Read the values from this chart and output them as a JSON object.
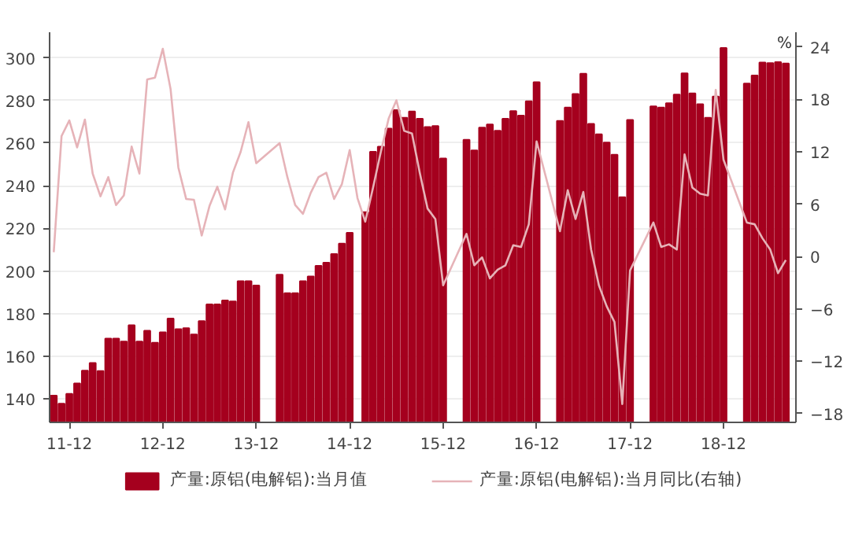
{
  "chart_data": {
    "type": "bar",
    "x": [
      "2011-10",
      "2011-11",
      "2011-12",
      "2012-01",
      "2012-02",
      "2012-03",
      "2012-04",
      "2012-05",
      "2012-06",
      "2012-07",
      "2012-08",
      "2012-09",
      "2012-10",
      "2012-11",
      "2012-12",
      "2013-01",
      "2013-02",
      "2013-03",
      "2013-04",
      "2013-05",
      "2013-06",
      "2013-07",
      "2013-08",
      "2013-09",
      "2013-10",
      "2013-11",
      "2013-12",
      "2014-01",
      "2014-02",
      "2014-03",
      "2014-04",
      "2014-05",
      "2014-06",
      "2014-07",
      "2014-08",
      "2014-09",
      "2014-10",
      "2014-11",
      "2014-12",
      "2015-01",
      "2015-02",
      "2015-03",
      "2015-04",
      "2015-05",
      "2015-06",
      "2015-07",
      "2015-08",
      "2015-09",
      "2015-10",
      "2015-11",
      "2015-12",
      "2016-01",
      "2016-02",
      "2016-03",
      "2016-04",
      "2016-05",
      "2016-06",
      "2016-07",
      "2016-08",
      "2016-09",
      "2016-10",
      "2016-11",
      "2016-12",
      "2017-01",
      "2017-02",
      "2017-03",
      "2017-04",
      "2017-05",
      "2017-06",
      "2017-07",
      "2017-08",
      "2017-09",
      "2017-10",
      "2017-11",
      "2017-12",
      "2018-01",
      "2018-02",
      "2018-03",
      "2018-04",
      "2018-05",
      "2018-06",
      "2018-07",
      "2018-08",
      "2018-09",
      "2018-10",
      "2018-11",
      "2018-12",
      "2019-01",
      "2019-02",
      "2019-03",
      "2019-04",
      "2019-05",
      "2019-06",
      "2019-07",
      "2019-08"
    ],
    "series": [
      {
        "name": "产量:原铝(电解铝):当月值",
        "color": "#a5001e",
        "values": [
          141.5,
          137.8,
          142.4,
          147.3,
          153.3,
          156.9,
          153.1,
          168.3,
          168.3,
          166.9,
          174.6,
          166.9,
          172,
          166.4,
          171.2,
          177.7,
          172.7,
          173.2,
          170.2,
          176.5,
          184.3,
          184.3,
          186.2,
          185.7,
          195.2,
          195.2,
          193.2,
          null,
          null,
          198.3,
          189.6,
          189.6,
          195.2,
          197.4,
          202.4,
          203.9,
          208,
          212.8,
          217.9,
          null,
          227.6,
          255.9,
          258.3,
          266.8,
          275.5,
          271.9,
          274.8,
          271.4,
          267.5,
          268,
          252.8,
          null,
          null,
          261.5,
          256.6,
          267.3,
          268.7,
          265.8,
          271.4,
          275,
          272.9,
          279.6,
          288.6,
          null,
          null,
          270.4,
          276.7,
          283,
          292.5,
          269,
          264.1,
          260.3,
          254.5,
          234.6,
          270.9,
          null,
          null,
          277.2,
          276.7,
          278.7,
          282.8,
          292.7,
          283.3,
          278.2,
          271.9,
          281.8,
          304.6,
          null,
          null,
          287.9,
          291.7,
          297.8,
          297.5,
          298,
          297.3
        ]
      },
      {
        "name": "产量:原铝(电解铝):当月同比(右轴)",
        "type": "line",
        "axis": "y2",
        "color": "#e6b3b8",
        "values": [
          0.5,
          13.8,
          15.6,
          12.5,
          15.7,
          9.5,
          6.9,
          9.1,
          5.9,
          7.0,
          12.6,
          9.5,
          20.3,
          20.5,
          23.8,
          19.2,
          10.2,
          6.6,
          6.5,
          2.4,
          5.8,
          8.0,
          5.4,
          9.6,
          12.0,
          15.4,
          10.7,
          null,
          null,
          13.0,
          9.1,
          5.9,
          4.9,
          7.3,
          9.1,
          9.6,
          6.6,
          8.3,
          12.2,
          6.7,
          4.0,
          7.9,
          12.0,
          15.8,
          17.9,
          14.4,
          14.1,
          9.6,
          5.5,
          4.3,
          -3.3,
          null,
          null,
          2.6,
          -1.0,
          -0.1,
          -2.5,
          -1.5,
          -1.0,
          1.3,
          1.1,
          3.7,
          13.2,
          null,
          null,
          2.9,
          7.6,
          4.3,
          7.4,
          0.8,
          -3.3,
          -5.7,
          -7.5,
          -16.9,
          -1.6,
          null,
          null,
          3.9,
          1.1,
          1.4,
          0.8,
          11.7,
          7.9,
          7.2,
          7.0,
          19.1,
          11.1,
          null,
          null,
          3.9,
          3.7,
          2.1,
          0.8,
          -1.9,
          -0.4
        ]
      }
    ],
    "xlim": [
      "2011-09-15",
      "2019-09-10"
    ],
    "xticks": [
      {
        "value": "2011-12",
        "label": "11-12"
      },
      {
        "value": "2012-12",
        "label": "12-12"
      },
      {
        "value": "2013-12",
        "label": "13-12"
      },
      {
        "value": "2014-12",
        "label": "14-12"
      },
      {
        "value": "2015-12",
        "label": "15-12"
      },
      {
        "value": "2016-12",
        "label": "16-12"
      },
      {
        "value": "2017-12",
        "label": "17-12"
      },
      {
        "value": "2018-12",
        "label": "18-12"
      }
    ],
    "ylim": [
      129,
      312
    ],
    "yticks": [
      140,
      160,
      180,
      200,
      220,
      240,
      260,
      280,
      300
    ],
    "y2lim": [
      -19,
      25.7
    ],
    "y2ticks": [
      -18,
      -12,
      -6,
      0,
      6,
      12,
      18,
      24
    ],
    "y2label": "%",
    "grid": "y",
    "legend": "bottom"
  }
}
